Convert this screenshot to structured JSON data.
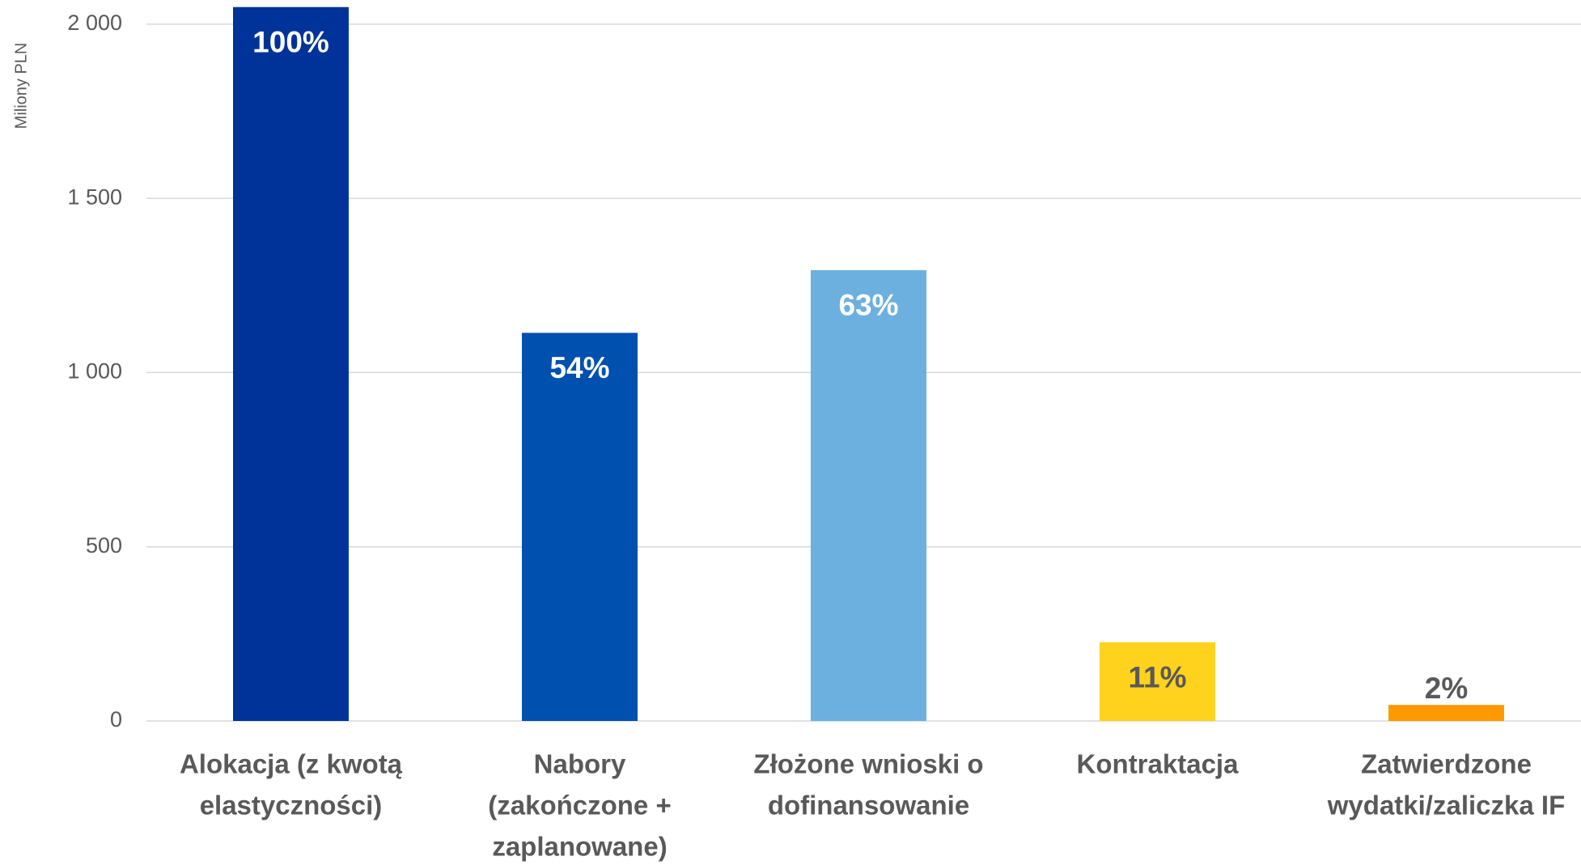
{
  "chart_data": {
    "type": "bar",
    "y_axis_label": "Miliony PLN",
    "categories": [
      [
        "Alokacja (z kwotą",
        "elastyczności)"
      ],
      [
        "Nabory",
        "(zakończone +",
        "zaplanowane)"
      ],
      [
        "Złożone wnioski o",
        "dofinansowanie"
      ],
      [
        "Kontraktacja"
      ],
      [
        "Zatwierdzone",
        "wydatki/zaliczka IF"
      ]
    ],
    "values": [
      2049,
      1114,
      1294,
      226,
      46
    ],
    "share_labels": [
      "100%",
      "54%",
      "63%",
      "11%",
      "2%"
    ],
    "colors": [
      "#003399",
      "#0050b0",
      "#6cb0e0",
      "#ffd21e",
      "#ff9900"
    ],
    "label_colors": [
      "#ffffff",
      "#ffffff",
      "#ffffff",
      "#595959",
      "#595959"
    ],
    "ylim": [
      0,
      2060
    ],
    "yticks": [
      0,
      500,
      {
        "value": 1000,
        "label": "1 000"
      },
      {
        "value": 1500,
        "label": "1 500"
      },
      {
        "value": 2000,
        "label": "2 000"
      }
    ],
    "grid": true
  }
}
